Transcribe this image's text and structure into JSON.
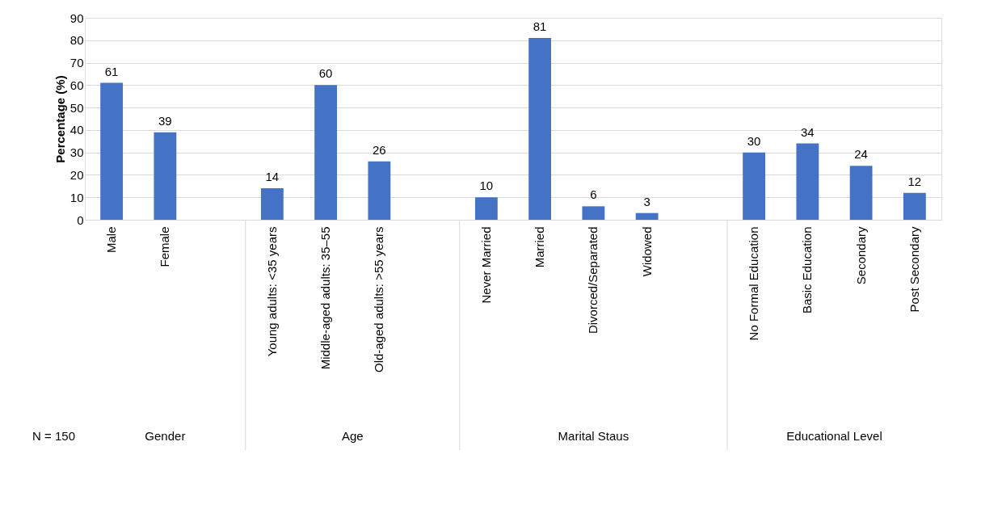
{
  "chart_data": {
    "type": "bar",
    "ylabel": "Percentage (%)",
    "categories": [
      "Male",
      "Female",
      null,
      "Young adults: <35 years",
      "Middle-aged adults: 35–55",
      "Old-aged adults: >55 years",
      null,
      "Never Married",
      "Married",
      "Divorced/Separated",
      "Widowed",
      null,
      "No Formal Education",
      "Basic Education",
      "Secondary",
      "Post Secondary"
    ],
    "values": [
      61,
      39,
      null,
      14,
      60,
      26,
      null,
      10,
      81,
      6,
      3,
      null,
      30,
      34,
      24,
      12
    ],
    "color": "#4472c4",
    "ylim": [
      0,
      90
    ],
    "yticks": [
      0,
      10,
      20,
      30,
      40,
      50,
      60,
      70,
      80,
      90
    ],
    "grid": "y",
    "data_labels": true,
    "annotations": [
      "Gender",
      "Age",
      "Marital Staus",
      "Educational Level",
      "N = 150"
    ]
  }
}
